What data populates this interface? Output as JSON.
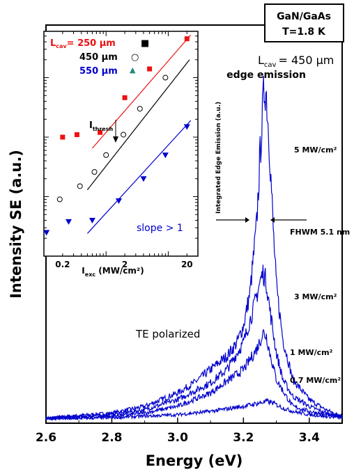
{
  "chart_data": {
    "type": "line",
    "main": {
      "xlabel": "Energy (eV)",
      "ylabel": "Intensity SE (a.u.)",
      "xlim": [
        2.6,
        3.5
      ],
      "ylim": [
        0,
        1.0
      ],
      "x_ticks": [
        2.6,
        2.8,
        3.0,
        3.2,
        3.4
      ],
      "x_tick_labels": [
        "2.6",
        "2.8",
        "3.0",
        "3.2",
        "3.4"
      ],
      "series_color": "#0000cc",
      "series": [
        {
          "name": "5 MW/cm²",
          "x": [
            2.6,
            2.8,
            2.9,
            3.0,
            3.05,
            3.1,
            3.15,
            3.18,
            3.2,
            3.22,
            3.24,
            3.25,
            3.26,
            3.265,
            3.27,
            3.28,
            3.29,
            3.3,
            3.32,
            3.35,
            3.4,
            3.45,
            3.5
          ],
          "y": [
            0.005,
            0.02,
            0.04,
            0.08,
            0.11,
            0.15,
            0.19,
            0.23,
            0.28,
            0.38,
            0.58,
            0.78,
            0.95,
            1.0,
            0.97,
            0.8,
            0.58,
            0.4,
            0.24,
            0.12,
            0.06,
            0.03,
            0.01
          ]
        },
        {
          "name": "3 MW/cm²",
          "x": [
            2.6,
            2.8,
            2.9,
            3.0,
            3.1,
            3.15,
            3.2,
            3.23,
            3.25,
            3.26,
            3.27,
            3.28,
            3.3,
            3.32,
            3.35,
            3.4,
            3.45,
            3.5
          ],
          "y": [
            0.005,
            0.015,
            0.03,
            0.06,
            0.11,
            0.15,
            0.23,
            0.33,
            0.41,
            0.44,
            0.41,
            0.33,
            0.2,
            0.12,
            0.07,
            0.04,
            0.02,
            0.01
          ]
        },
        {
          "name": "1 MW/cm²",
          "x": [
            2.6,
            2.8,
            2.9,
            3.0,
            3.1,
            3.2,
            3.24,
            3.26,
            3.27,
            3.28,
            3.3,
            3.33,
            3.35,
            3.4,
            3.45,
            3.5
          ],
          "y": [
            0.003,
            0.01,
            0.02,
            0.04,
            0.08,
            0.15,
            0.21,
            0.26,
            0.25,
            0.2,
            0.12,
            0.07,
            0.04,
            0.025,
            0.015,
            0.01
          ]
        },
        {
          "name": "0.7 MW/cm²",
          "x": [
            2.6,
            2.8,
            3.0,
            3.1,
            3.2,
            3.25,
            3.27,
            3.29,
            3.32,
            3.35,
            3.4,
            3.45,
            3.5
          ],
          "y": [
            0.002,
            0.006,
            0.015,
            0.025,
            0.04,
            0.05,
            0.055,
            0.05,
            0.035,
            0.025,
            0.015,
            0.01,
            0.005
          ]
        }
      ],
      "curve_labels": [
        "5 MW/cm²",
        "3 MW/cm²",
        "1 MW/cm²",
        "0.7 MW/cm²"
      ],
      "annotations": {
        "sample_line1": "GaN/GaAs",
        "sample_line2": "T=1.8 K",
        "lcav_main": "L",
        "lcav_main_sub": "cav",
        "lcav_main_value": "= 450 μm",
        "edge_emission": "edge emission",
        "fwhm": "FHWM 5.1 nm",
        "polarization": "TE polarized"
      }
    },
    "inset": {
      "type": "scatter",
      "scale": "log-log",
      "xlabel_main": "I",
      "xlabel_sub": "exc",
      "xlabel_rest": " (MW/cm²)",
      "ylabel": "Integrated Edge Emission (a.u.)",
      "xlim": [
        0.1,
        30
      ],
      "ylim": [
        0.1,
        600
      ],
      "x_ticks": [
        0.2,
        2,
        20
      ],
      "x_tick_labels": [
        "0.2",
        "2",
        "20"
      ],
      "threshold_label_main": "I",
      "threshold_label_sub": "thresh",
      "slope_label": "slope > 1",
      "series": [
        {
          "name_main": "L",
          "name_sub": "cav",
          "name_value": "= 250 μm",
          "color": "#ee1111",
          "marker": "square",
          "x": [
            0.2,
            0.34,
            0.8,
            2.0,
            5.0,
            20.0
          ],
          "y": [
            10,
            11,
            12,
            46,
            140,
            450
          ],
          "fit_x": [
            0.6,
            23
          ],
          "fit_y": [
            6.5,
            520
          ]
        },
        {
          "name_main": "",
          "name_sub": "",
          "name_value": "450 μm",
          "color": "#000000",
          "marker": "circle",
          "x": [
            0.18,
            0.38,
            0.65,
            1.0,
            1.9,
            3.5,
            9.0
          ],
          "y": [
            0.9,
            1.5,
            2.6,
            5.0,
            11,
            30,
            100
          ],
          "fit_x": [
            0.5,
            22
          ],
          "fit_y": [
            1.3,
            200
          ]
        },
        {
          "name_main": "",
          "name_sub": "",
          "name_value": "550 μm",
          "color": "#0000cc",
          "marker": "triangle-down",
          "x": [
            0.11,
            0.25,
            0.6,
            1.6,
            4.0,
            9.0,
            20.0
          ],
          "y": [
            0.25,
            0.38,
            0.4,
            0.85,
            2.0,
            5.0,
            15
          ],
          "fit_x": [
            0.5,
            23
          ],
          "fit_y": [
            0.24,
            19
          ]
        }
      ],
      "legend_symbols": {
        "square": "■",
        "circle": "○",
        "triangle": "▲"
      },
      "triangle_legend_color": "#228877"
    }
  }
}
